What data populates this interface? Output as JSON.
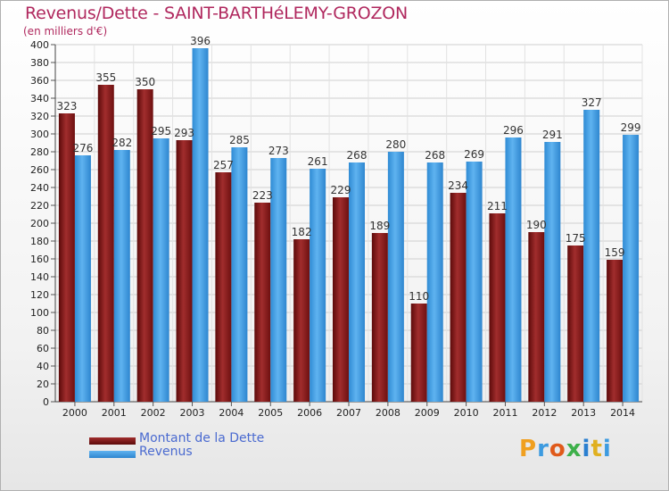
{
  "title": "Revenus/Dette - SAINT-BARTHéLEMY-GROZON",
  "subtitle": "(en milliers d'€)",
  "colors": {
    "dette": "#8b1a1a",
    "revenus": "#3d9be0",
    "title": "#b0285e",
    "legend_text": "#4a6ad0"
  },
  "legend": {
    "dette_label": "Montant de la Dette",
    "revenus_label": "Revenus"
  },
  "logo": {
    "text": "Proxiti",
    "letters": [
      "P",
      "r",
      "o",
      "x",
      "i",
      "t",
      "i"
    ]
  },
  "chart_data": {
    "type": "bar",
    "categories": [
      "2000",
      "2001",
      "2002",
      "2003",
      "2004",
      "2005",
      "2006",
      "2007",
      "2008",
      "2009",
      "2010",
      "2011",
      "2012",
      "2013",
      "2014"
    ],
    "series": [
      {
        "name": "Montant de la Dette",
        "values": [
          323,
          355,
          350,
          293,
          257,
          223,
          182,
          229,
          189,
          110,
          234,
          211,
          190,
          175,
          159
        ]
      },
      {
        "name": "Revenus",
        "values": [
          276,
          282,
          295,
          396,
          285,
          273,
          261,
          268,
          280,
          268,
          269,
          296,
          291,
          327,
          299
        ]
      }
    ],
    "ylim": [
      0,
      400
    ],
    "yticks": [
      0,
      20,
      40,
      60,
      80,
      100,
      120,
      140,
      160,
      180,
      200,
      220,
      240,
      260,
      280,
      300,
      320,
      340,
      360,
      380,
      400
    ],
    "grid": true,
    "legend_position": "bottom-left"
  }
}
